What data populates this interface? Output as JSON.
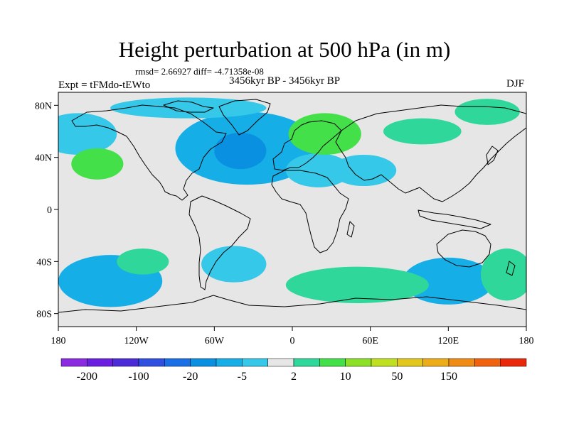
{
  "figure": {
    "title": "Height perturbation at 500 hPa (in m)",
    "stats": "rmsd= 2.66927 diff= -4.71358e-08",
    "period": "3456kyr BP - 3456kyr BP",
    "experiment": "Expt = tFMdo-tEWto",
    "season": "DJF"
  },
  "map": {
    "lat_ticks": [
      "80N",
      "40N",
      "0",
      "40S",
      "80S"
    ],
    "lon_ticks": [
      "180",
      "120W",
      "60W",
      "0",
      "60E",
      "120E",
      "180"
    ],
    "lat_tick_values": [
      80,
      40,
      0,
      -40,
      -80
    ],
    "lon_tick_values": [
      -180,
      -120,
      -60,
      0,
      60,
      120,
      180
    ],
    "lon_range": [
      -180,
      180
    ],
    "lat_range": [
      -90,
      90
    ],
    "coastline_color": "#000000",
    "ocean_background": "#e6e6e6",
    "anomaly_regions": [
      {
        "name": "north-atlantic-negative",
        "level": "-20",
        "lon": -35,
        "lat": 47,
        "rx": 55,
        "ry": 28
      },
      {
        "name": "north-atlantic-core",
        "level": "-50",
        "lon": -40,
        "lat": 45,
        "rx": 20,
        "ry": 14
      },
      {
        "name": "arctic-canada-negative",
        "level": "-5",
        "lon": -80,
        "lat": 78,
        "rx": 60,
        "ry": 8
      },
      {
        "name": "north-pacific-negative",
        "level": "-5",
        "lon": -165,
        "lat": 58,
        "rx": 30,
        "ry": 16
      },
      {
        "name": "mediterranean-negative",
        "level": "-5",
        "lon": 20,
        "lat": 30,
        "rx": 25,
        "ry": 13
      },
      {
        "name": "arabian-sea-negative",
        "level": "-5",
        "lon": 55,
        "lat": 30,
        "rx": 25,
        "ry": 12
      },
      {
        "name": "south-pacific-negative",
        "level": "-20",
        "lon": -140,
        "lat": -55,
        "rx": 40,
        "ry": 20
      },
      {
        "name": "south-atlantic-negative",
        "level": "-5",
        "lon": -45,
        "lat": -42,
        "rx": 25,
        "ry": 14
      },
      {
        "name": "south-indian-negative",
        "level": "-20",
        "lon": 120,
        "lat": -55,
        "rx": 35,
        "ry": 18
      },
      {
        "name": "southern-ocean-positive",
        "level": "2",
        "lon": 50,
        "lat": -58,
        "rx": 55,
        "ry": 14
      },
      {
        "name": "europe-positive",
        "level": "10",
        "lon": 25,
        "lat": 58,
        "rx": 28,
        "ry": 16
      },
      {
        "name": "north-pacific-positive",
        "level": "10",
        "lon": -150,
        "lat": 35,
        "rx": 20,
        "ry": 12
      },
      {
        "name": "siberia-positive",
        "level": "2",
        "lon": 100,
        "lat": 60,
        "rx": 30,
        "ry": 10
      },
      {
        "name": "east-asia-positive",
        "level": "2",
        "lon": 150,
        "lat": 75,
        "rx": 25,
        "ry": 10
      },
      {
        "name": "tasman-positive",
        "level": "2",
        "lon": 165,
        "lat": -50,
        "rx": 20,
        "ry": 20
      },
      {
        "name": "south-pacific-positive",
        "level": "2",
        "lon": -115,
        "lat": -40,
        "rx": 20,
        "ry": 10
      }
    ]
  },
  "colorbar": {
    "colors": [
      "#8a2be2",
      "#6a1ee0",
      "#4b2ad8",
      "#2e4fe0",
      "#1a6fe6",
      "#0a90e0",
      "#16aee6",
      "#36c8e8",
      "#e6e6e6",
      "#2fd89a",
      "#43e04a",
      "#8ce028",
      "#bfe020",
      "#e2c81c",
      "#ecad19",
      "#ee8c15",
      "#f0620f",
      "#e9280c"
    ],
    "labels": [
      "-200",
      "-100",
      "-20",
      "-5",
      "2",
      "10",
      "50",
      "150"
    ],
    "label_slots": [
      1,
      3,
      5,
      7,
      9,
      11,
      13,
      15
    ]
  }
}
